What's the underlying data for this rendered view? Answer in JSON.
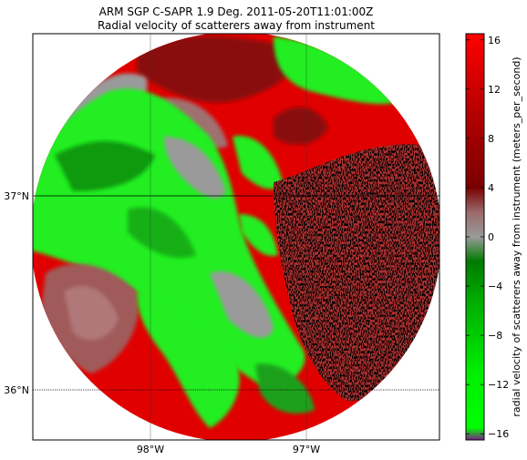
{
  "title_line1": "ARM SGP C-SAPR 1.9 Deg. 2011-05-20T11:01:00Z",
  "title_line2": "Radial velocity of scatterers away from instrument",
  "map": {
    "lon_ticks": [
      {
        "value": -98,
        "label": "98°W"
      },
      {
        "value": -97,
        "label": "97°W"
      }
    ],
    "lat_ticks": [
      {
        "value": 37,
        "label": "37°N"
      },
      {
        "value": 36,
        "label": "36°N"
      }
    ]
  },
  "colorbar": {
    "label": "radial velocity of scatterers away from instrument (meters_per_second)",
    "min": -16.5,
    "max": 16.5,
    "ticks": [
      "16",
      "12",
      "8",
      "4",
      "0",
      "−4",
      "−8",
      "−12",
      "−16"
    ],
    "tick_values": [
      16,
      12,
      8,
      4,
      0,
      -4,
      -8,
      -12,
      -16
    ],
    "stops": [
      {
        "value": -16.5,
        "color": "#7a1f8a"
      },
      {
        "value": -15.5,
        "color": "#00ff00"
      },
      {
        "value": -11,
        "color": "#00ee00"
      },
      {
        "value": -5,
        "color": "#00aa00"
      },
      {
        "value": -2,
        "color": "#007a00"
      },
      {
        "value": 0,
        "color": "#9a9a9a"
      },
      {
        "value": 2,
        "color": "#9a6a6a"
      },
      {
        "value": 4,
        "color": "#7a0000"
      },
      {
        "value": 9,
        "color": "#aa0000"
      },
      {
        "value": 16.5,
        "color": "#ff0000"
      }
    ]
  },
  "colors": {
    "red": "#e00000",
    "dark_red": "#8a0a0a",
    "green": "#22ee22",
    "dark_green": "#0c8a0c",
    "gray": "#9a9a9a",
    "rose": "#a05a5a"
  }
}
